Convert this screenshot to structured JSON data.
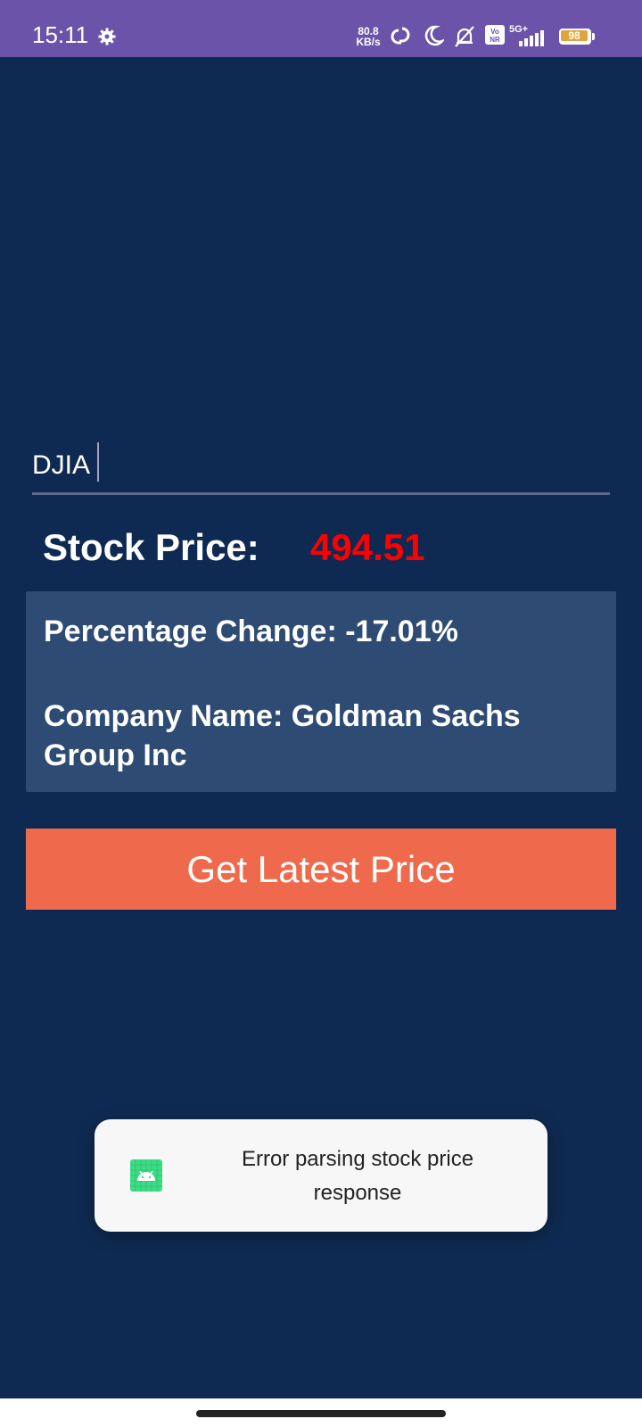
{
  "status_bar": {
    "time": "15:11",
    "net_speed_value": "80.8",
    "net_speed_unit": "KB/s",
    "network_label": "5G+",
    "volte_label_top": "Vo",
    "volte_label_bottom": "NR",
    "battery_level": "98"
  },
  "symbol_input": {
    "value": "DJIA",
    "placeholder": ""
  },
  "stock_price": {
    "label": "Stock Price:",
    "value": "494.51"
  },
  "info": {
    "percentage_change": "Percentage Change: -17.01%",
    "company_name": "Company Name: Goldman Sachs Group Inc"
  },
  "actions": {
    "get_price_label": "Get Latest Price"
  },
  "toast": {
    "message": "Error parsing stock price response"
  },
  "colors": {
    "background": "#0f2a52",
    "status_bar": "#6a53a8",
    "card": "#2e4b73",
    "accent_button": "#ef6a4c",
    "price": "#ff0000"
  }
}
